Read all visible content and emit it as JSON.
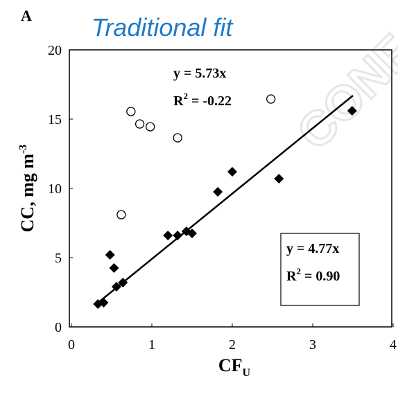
{
  "chart_data": {
    "type": "scatter",
    "panel_label": "A",
    "title": "Traditional fit",
    "watermark": "CONF",
    "x_label": {
      "main": "CF",
      "sub": "U"
    },
    "y_label": {
      "main": "CC, mg m",
      "sup": "-3"
    },
    "xlim": [
      0,
      4
    ],
    "xticks": [
      0,
      1,
      2,
      3,
      4
    ],
    "ylim": [
      0,
      20
    ],
    "yticks": [
      0,
      5,
      10,
      15,
      20
    ],
    "series": [
      {
        "marker": "open-circle",
        "color": "#000000",
        "x": [
          0.74,
          0.85,
          0.98,
          1.32,
          2.48,
          0.62
        ],
        "values": [
          15.55,
          14.65,
          14.45,
          13.65,
          16.45,
          8.1
        ]
      },
      {
        "marker": "diamond",
        "color": "#000000",
        "x": [
          0.33,
          0.4,
          0.48,
          0.53,
          0.56,
          0.64,
          1.2,
          1.32,
          1.43,
          1.5,
          1.82,
          2.0,
          2.58,
          3.49
        ],
        "values": [
          1.65,
          1.75,
          5.2,
          4.25,
          2.9,
          3.2,
          6.6,
          6.6,
          6.9,
          6.75,
          9.75,
          11.2,
          10.7,
          15.6
        ]
      }
    ],
    "fit_line": {
      "color": "#000000",
      "x": [
        0.3,
        3.5
      ],
      "values": [
        1.6,
        16.7
      ]
    },
    "annotations": [
      {
        "eq": "y = 5.73x",
        "r": "R",
        "sup": "2",
        "rest": " = -0.22",
        "boxed": false
      },
      {
        "eq": "y = 4.77x",
        "r": "R",
        "sup": "2",
        "rest": " = 0.90",
        "boxed": true
      }
    ]
  }
}
